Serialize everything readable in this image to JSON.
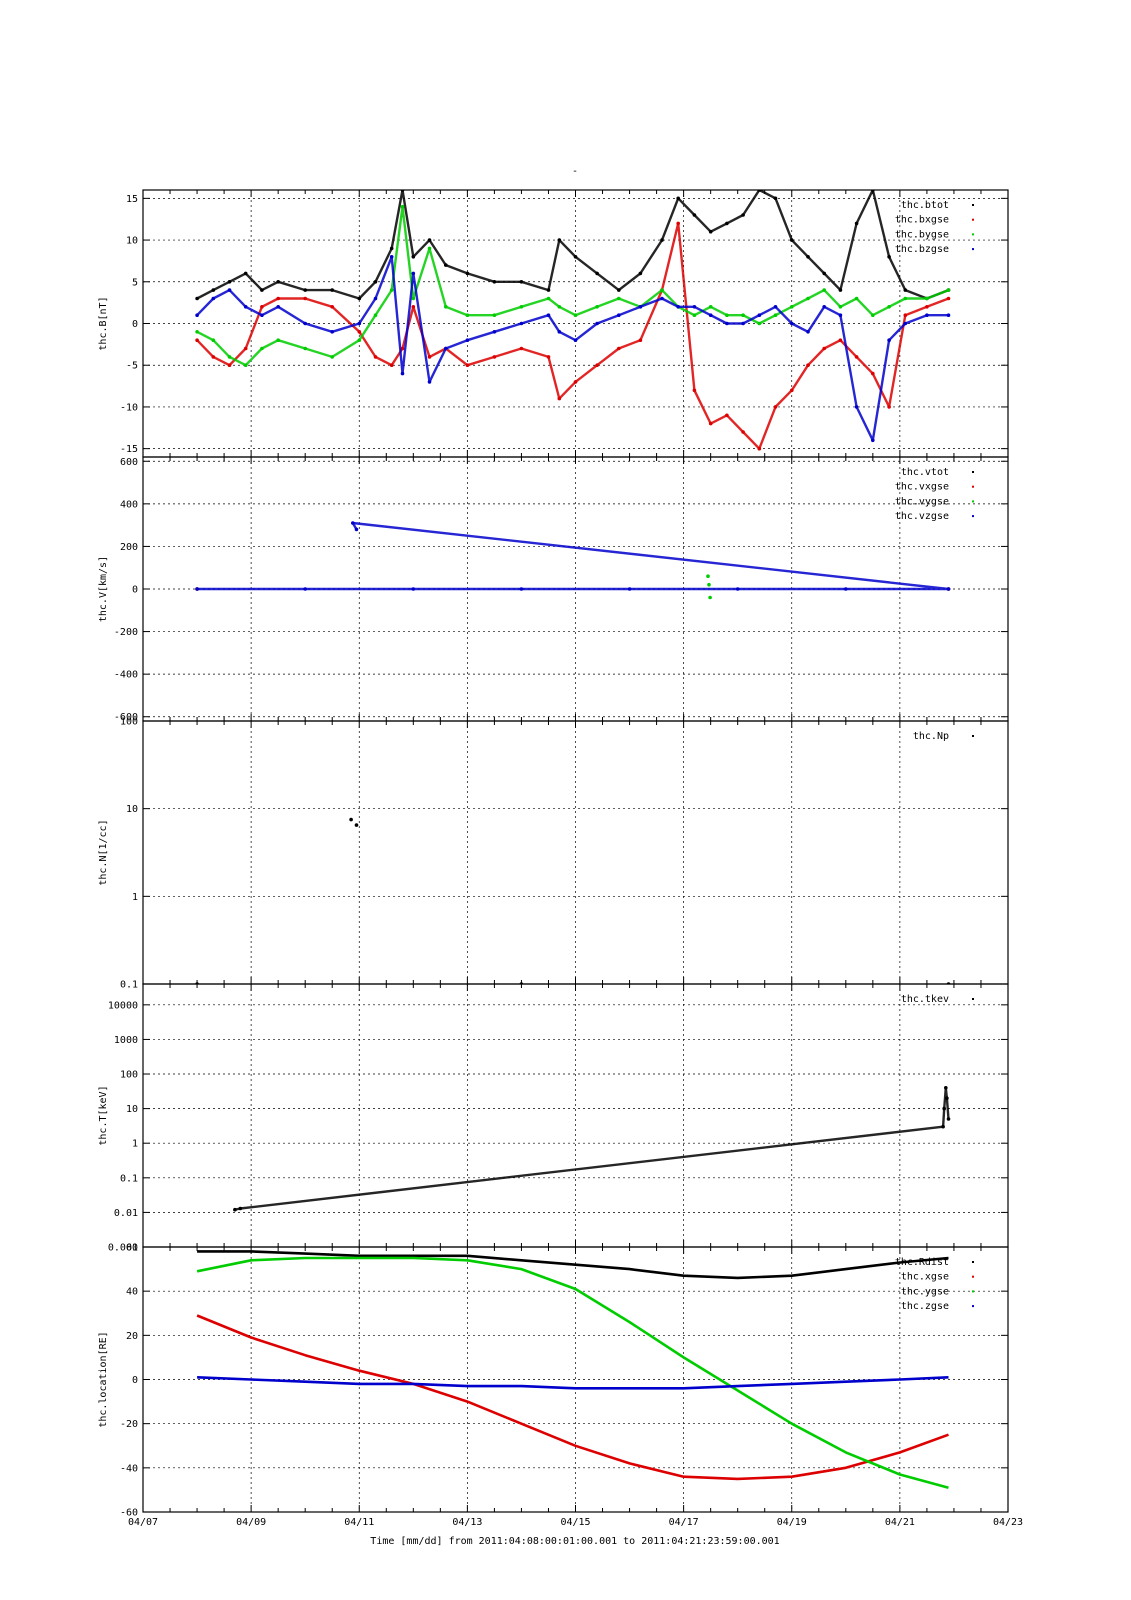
{
  "figure": {
    "title": "-",
    "x_axis_label": "Time [mm/dd]  from 2011:04:08:00:01:00.001  to  2011:04:21:23:59:00.001"
  },
  "chart_data": [
    {
      "type": "scatter",
      "ylabel": "thc.B[nT]",
      "ylim": [
        -16,
        16
      ],
      "yscale": "linear",
      "yticks": [
        -15,
        -10,
        -5,
        0,
        5,
        10,
        15
      ],
      "ytick_labels": [
        "-15",
        "-10",
        "-5",
        "0",
        "5",
        "10",
        "15"
      ],
      "grid": true,
      "legend_position": "top-right",
      "series": [
        {
          "name": "thc.btot",
          "color": "#000000",
          "x": [
            8.0,
            8.3,
            8.6,
            8.9,
            9.2,
            9.5,
            10.0,
            10.5,
            11.0,
            11.3,
            11.6,
            11.8,
            12.0,
            12.3,
            12.6,
            13.0,
            13.5,
            14.0,
            14.5,
            14.7,
            15.0,
            15.4,
            15.8,
            16.2,
            16.6,
            16.9,
            17.2,
            17.5,
            17.8,
            18.1,
            18.4,
            18.7,
            19.0,
            19.3,
            19.6,
            19.9,
            20.2,
            20.5,
            20.8,
            21.1,
            21.5,
            21.9
          ],
          "y": [
            3,
            4,
            5,
            6,
            4,
            5,
            4,
            4,
            3,
            5,
            9,
            16,
            8,
            10,
            7,
            6,
            5,
            5,
            4,
            10,
            8,
            6,
            4,
            6,
            10,
            15,
            13,
            11,
            12,
            13,
            16,
            15,
            10,
            8,
            6,
            4,
            12,
            16,
            8,
            4,
            3,
            4
          ]
        },
        {
          "name": "thc.bxgse",
          "color": "#dd0000",
          "x": [
            8.0,
            8.3,
            8.6,
            8.9,
            9.2,
            9.5,
            10.0,
            10.5,
            11.0,
            11.3,
            11.6,
            11.8,
            12.0,
            12.3,
            12.6,
            13.0,
            13.5,
            14.0,
            14.5,
            14.7,
            15.0,
            15.4,
            15.8,
            16.2,
            16.6,
            16.9,
            17.2,
            17.5,
            17.8,
            18.1,
            18.4,
            18.7,
            19.0,
            19.3,
            19.6,
            19.9,
            20.2,
            20.5,
            20.8,
            21.1,
            21.5,
            21.9
          ],
          "y": [
            -2,
            -4,
            -5,
            -3,
            2,
            3,
            3,
            2,
            -1,
            -4,
            -5,
            -3,
            2,
            -4,
            -3,
            -5,
            -4,
            -3,
            -4,
            -9,
            -7,
            -5,
            -3,
            -2,
            4,
            12,
            -8,
            -12,
            -11,
            -13,
            -15,
            -10,
            -8,
            -5,
            -3,
            -2,
            -4,
            -6,
            -10,
            1,
            2,
            3
          ]
        },
        {
          "name": "thc.bygse",
          "color": "#00cc00",
          "x": [
            8.0,
            8.3,
            8.6,
            8.9,
            9.2,
            9.5,
            10.0,
            10.5,
            11.0,
            11.3,
            11.6,
            11.8,
            12.0,
            12.3,
            12.6,
            13.0,
            13.5,
            14.0,
            14.5,
            14.7,
            15.0,
            15.4,
            15.8,
            16.2,
            16.6,
            16.9,
            17.2,
            17.5,
            17.8,
            18.1,
            18.4,
            18.7,
            19.0,
            19.3,
            19.6,
            19.9,
            20.2,
            20.5,
            20.8,
            21.1,
            21.5,
            21.9
          ],
          "y": [
            -1,
            -2,
            -4,
            -5,
            -3,
            -2,
            -3,
            -4,
            -2,
            1,
            4,
            14,
            3,
            9,
            2,
            1,
            1,
            2,
            3,
            2,
            1,
            2,
            3,
            2,
            4,
            2,
            1,
            2,
            1,
            1,
            0,
            1,
            2,
            3,
            4,
            2,
            3,
            1,
            2,
            3,
            3,
            4
          ]
        },
        {
          "name": "thc.bzgse",
          "color": "#0000cc",
          "x": [
            8.0,
            8.3,
            8.6,
            8.9,
            9.2,
            9.5,
            10.0,
            10.5,
            11.0,
            11.3,
            11.6,
            11.8,
            12.0,
            12.3,
            12.6,
            13.0,
            13.5,
            14.0,
            14.5,
            14.7,
            15.0,
            15.4,
            15.8,
            16.2,
            16.6,
            16.9,
            17.2,
            17.5,
            17.8,
            18.1,
            18.4,
            18.7,
            19.0,
            19.3,
            19.6,
            19.9,
            20.2,
            20.5,
            20.8,
            21.1,
            21.5,
            21.9
          ],
          "y": [
            1,
            3,
            4,
            2,
            1,
            2,
            0,
            -1,
            0,
            3,
            8,
            -6,
            6,
            -7,
            -3,
            -2,
            -1,
            0,
            1,
            -1,
            -2,
            0,
            1,
            2,
            3,
            2,
            2,
            1,
            0,
            0,
            1,
            2,
            0,
            -1,
            2,
            1,
            -10,
            -14,
            -2,
            0,
            1,
            1
          ]
        }
      ]
    },
    {
      "type": "scatter",
      "ylabel": "thc.V[km/s]",
      "ylim": [
        -620,
        620
      ],
      "yscale": "linear",
      "yticks": [
        -600,
        -400,
        -200,
        0,
        200,
        400,
        600
      ],
      "ytick_labels": [
        "-600",
        "-400",
        "-200",
        "0",
        "200",
        "400",
        "600"
      ],
      "grid": true,
      "legend_position": "top-right",
      "series": [
        {
          "name": "thc.vtot",
          "color": "#000000",
          "x": [
            8.0,
            21.9
          ],
          "y": [
            0,
            0
          ]
        },
        {
          "name": "thc.vxgse",
          "color": "#dd0000",
          "x": [
            8.0,
            21.9
          ],
          "y": [
            0,
            0
          ]
        },
        {
          "name": "thc.vygse",
          "color": "#00cc00",
          "x": [
            17.45,
            17.47,
            17.49
          ],
          "y": [
            60,
            20,
            -40
          ]
        },
        {
          "name": "thc.vzgse",
          "color": "#0000cc",
          "x": [
            8.0,
            10.0,
            12.0,
            14.0,
            16.0,
            18.0,
            20.0,
            21.9,
            10.88,
            10.95
          ],
          "y": [
            0,
            0,
            0,
            0,
            0,
            0,
            0,
            0,
            310,
            280
          ]
        }
      ]
    },
    {
      "type": "scatter",
      "ylabel": "thc.N[1/cc]",
      "ylim": [
        0.1,
        100
      ],
      "yscale": "log",
      "yticks": [
        0.1,
        1,
        10,
        100
      ],
      "ytick_labels": [
        "0.1",
        "1",
        "10",
        "100"
      ],
      "grid": true,
      "legend_position": "top-right",
      "series": [
        {
          "name": "thc.Np",
          "color": "#000000",
          "x": [
            10.85,
            10.95,
            8.0,
            14.0,
            21.9
          ],
          "y": [
            7.5,
            6.5,
            0.1,
            0.1,
            0.1
          ]
        }
      ]
    },
    {
      "type": "scatter",
      "ylabel": "thc.T[keV]",
      "ylim": [
        0.001,
        40000
      ],
      "yscale": "log",
      "yticks": [
        0.001,
        0.01,
        0.1,
        1,
        10,
        100,
        1000,
        10000
      ],
      "ytick_labels": [
        "0.001",
        "0.01",
        "0.1",
        "1",
        "10",
        "100",
        "1000",
        "10000"
      ],
      "grid": true,
      "legend_position": "top-right",
      "series": [
        {
          "name": "thc.tkev",
          "color": "#000000",
          "x": [
            8.7,
            8.8,
            21.8,
            21.82,
            21.85,
            21.87,
            21.9
          ],
          "y": [
            0.012,
            0.013,
            3,
            10,
            40,
            20,
            5
          ]
        }
      ]
    },
    {
      "type": "line",
      "ylabel": "thc.location[RE]",
      "ylim": [
        -60,
        60
      ],
      "yscale": "linear",
      "yticks": [
        -60,
        -40,
        -20,
        0,
        20,
        40,
        60
      ],
      "ytick_labels": [
        "-60",
        "-40",
        "-20",
        "0",
        "20",
        "40",
        "60"
      ],
      "grid": true,
      "legend_position": "top-right",
      "series": [
        {
          "name": "thc.Rdist",
          "color": "#000000",
          "x": [
            8.0,
            9.0,
            10.0,
            11.0,
            12.0,
            13.0,
            14.0,
            15.0,
            16.0,
            17.0,
            18.0,
            19.0,
            20.0,
            21.0,
            21.9
          ],
          "y": [
            58,
            58,
            57,
            56,
            56,
            56,
            54,
            52,
            50,
            47,
            46,
            47,
            50,
            53,
            55
          ]
        },
        {
          "name": "thc.xgse",
          "color": "#dd0000",
          "x": [
            8.0,
            9.0,
            10.0,
            11.0,
            12.0,
            13.0,
            14.0,
            15.0,
            16.0,
            17.0,
            18.0,
            19.0,
            20.0,
            21.0,
            21.9
          ],
          "y": [
            29,
            19,
            11,
            4,
            -2,
            -10,
            -20,
            -30,
            -38,
            -44,
            -45,
            -44,
            -40,
            -33,
            -25
          ]
        },
        {
          "name": "thc.ygse",
          "color": "#00cc00",
          "x": [
            8.0,
            9.0,
            10.0,
            11.0,
            12.0,
            13.0,
            14.0,
            15.0,
            16.0,
            17.0,
            18.0,
            19.0,
            20.0,
            21.0,
            21.9
          ],
          "y": [
            49,
            54,
            55,
            55,
            55,
            54,
            50,
            41,
            26,
            10,
            -5,
            -20,
            -33,
            -43,
            -49
          ]
        },
        {
          "name": "thc.zgse",
          "color": "#0000cc",
          "x": [
            8.0,
            9.0,
            10.0,
            11.0,
            12.0,
            13.0,
            14.0,
            15.0,
            16.0,
            17.0,
            18.0,
            19.0,
            20.0,
            21.0,
            21.9
          ],
          "y": [
            1,
            0,
            -1,
            -2,
            -2,
            -3,
            -3,
            -4,
            -4,
            -4,
            -3,
            -2,
            -1,
            0,
            1
          ]
        }
      ]
    }
  ],
  "x_axis": {
    "xlim": [
      "04/07",
      "04/23"
    ],
    "ticks": [
      "04/07",
      "04/09",
      "04/11",
      "04/13",
      "04/15",
      "04/17",
      "04/19",
      "04/21",
      "04/23"
    ]
  }
}
